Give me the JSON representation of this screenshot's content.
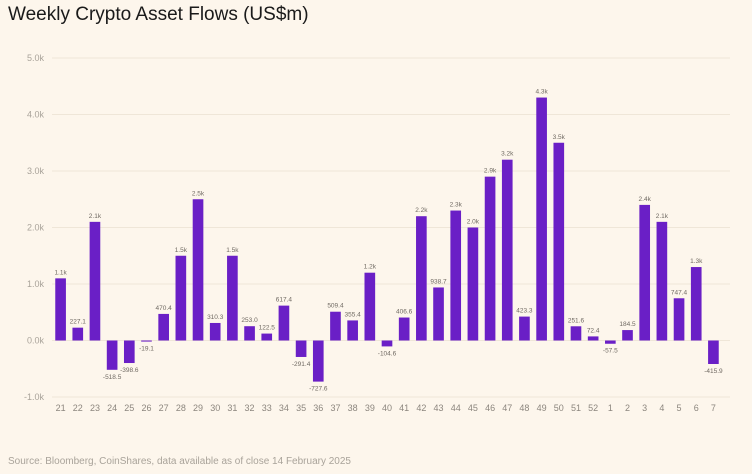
{
  "title": "Weekly Crypto Asset Flows (US$m)",
  "source": "Source: Bloomberg, CoinShares, data available as of close 14 February 2025",
  "colors": {
    "bar": "#6a1fc6",
    "grid": "#efe6d8",
    "background": "#fdf6ec"
  },
  "chart_data": {
    "type": "bar",
    "title": "Weekly Crypto Asset Flows (US$m)",
    "xlabel": "",
    "ylabel": "",
    "ylim": [
      -1000,
      5000
    ],
    "yticks": [
      -1000,
      0,
      1000,
      2000,
      3000,
      4000,
      5000
    ],
    "ytick_labels": [
      "-1.0k",
      "0.0k",
      "1.0k",
      "2.0k",
      "3.0k",
      "4.0k",
      "5.0k"
    ],
    "grid": true,
    "categories": [
      "21",
      "22",
      "23",
      "24",
      "25",
      "26",
      "27",
      "28",
      "29",
      "30",
      "31",
      "32",
      "33",
      "34",
      "35",
      "36",
      "37",
      "38",
      "39",
      "40",
      "41",
      "42",
      "43",
      "44",
      "45",
      "46",
      "47",
      "48",
      "49",
      "50",
      "51",
      "52",
      "1",
      "2",
      "3",
      "4",
      "5",
      "6",
      "7"
    ],
    "values": [
      1100,
      227.1,
      2100,
      -518.5,
      -398.6,
      -19.1,
      470.4,
      1500,
      2500,
      310.3,
      1500,
      253.0,
      122.5,
      617.4,
      -291.4,
      -727.6,
      509.4,
      355.4,
      1200,
      -104.6,
      406.6,
      2200,
      938.7,
      2300,
      2000,
      2900,
      3200,
      423.3,
      4300,
      3500,
      251.6,
      72.4,
      -57.5,
      184.5,
      2400,
      2100,
      747.4,
      1300,
      -415.9
    ],
    "data_labels": [
      "1.1k",
      "227.1",
      "2.1k",
      "-518.5",
      "-398.6",
      "-19.1",
      "470.4",
      "1.5k",
      "2.5k",
      "310.3",
      "1.5k",
      "253.0",
      "122.5",
      "617.4",
      "-291.4",
      "-727.6",
      "509.4",
      "355.4",
      "1.2k",
      "-104.6",
      "406.6",
      "2.2k",
      "938.7",
      "2.3k",
      "2.0k",
      "2.9k",
      "3.2k",
      "423.3",
      "4.3k",
      "3.5k",
      "251.6",
      "72.4",
      "-57.5",
      "184.5",
      "2.4k",
      "2.1k",
      "747.4",
      "1.3k",
      "-415.9"
    ]
  }
}
